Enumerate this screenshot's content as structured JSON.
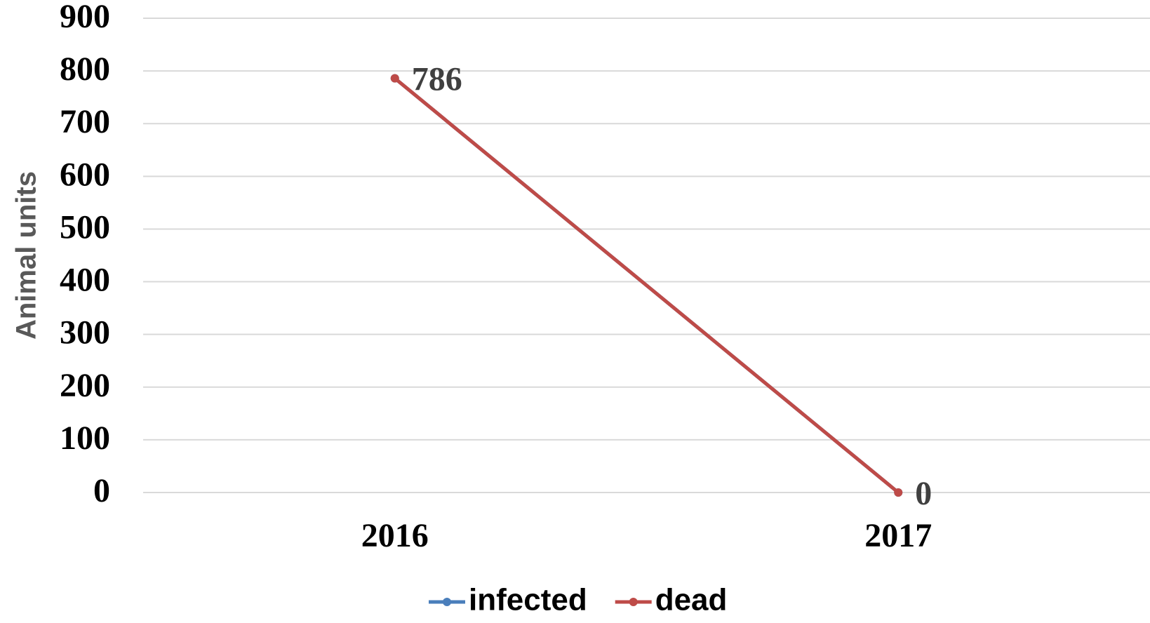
{
  "chart_data": {
    "type": "line",
    "y_label": "Animal units",
    "categories": [
      "2016",
      "2017"
    ],
    "series": [
      {
        "name": "infected",
        "color": "#4a7ebb",
        "values": [
          786,
          0
        ]
      },
      {
        "name": "dead",
        "color": "#be4b48",
        "values": [
          786,
          0
        ],
        "data_labels": true
      }
    ],
    "ylim": [
      0,
      900
    ],
    "yticks": [
      0,
      100,
      200,
      300,
      400,
      500,
      600,
      700,
      800,
      900
    ],
    "grid": true,
    "legend": "bottom"
  }
}
